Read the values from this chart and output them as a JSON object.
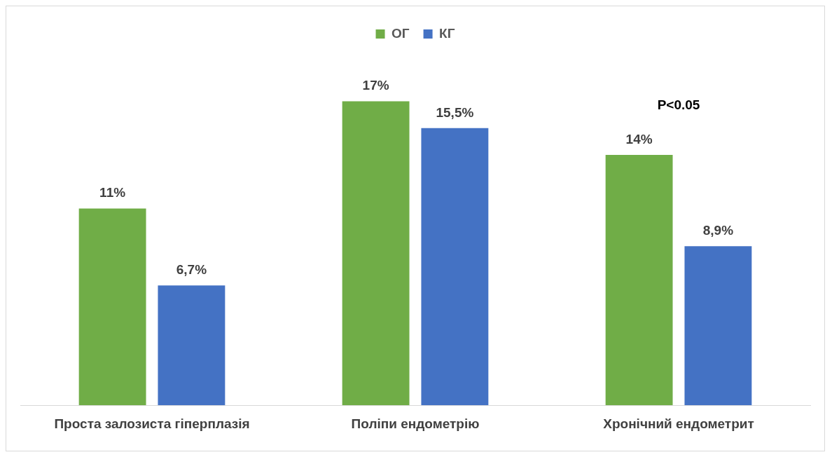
{
  "chart_data": {
    "type": "bar",
    "categories": [
      "Проста залозиста гіперплазія",
      "Поліпи ендометрію",
      "Хронічний ендометрит"
    ],
    "series": [
      {
        "name": "ОГ",
        "color": "#70ad47",
        "values": [
          11,
          17,
          14
        ],
        "value_labels": [
          "11%",
          "17%",
          "14%"
        ]
      },
      {
        "name": "КГ",
        "color": "#4472c4",
        "values": [
          6.7,
          15.5,
          8.9
        ],
        "value_labels": [
          "6,7%",
          "15,5%",
          "8,9%"
        ]
      }
    ],
    "grid": false,
    "legend": "top",
    "annotations": [
      "P<0.05"
    ]
  }
}
